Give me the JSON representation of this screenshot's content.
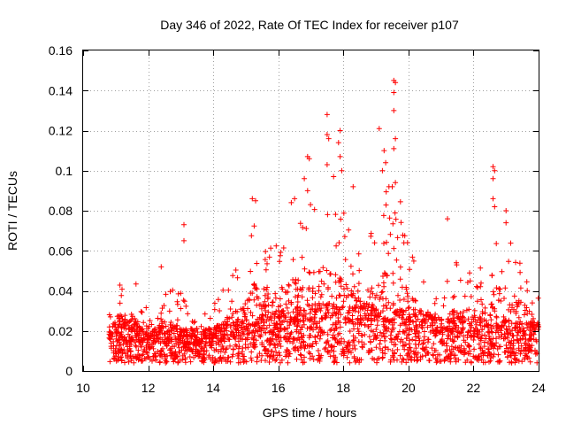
{
  "chart_data": {
    "type": "scatter",
    "title": "Day 346 of 2022, Rate Of TEC Index for receiver p107",
    "xlabel": "GPS time / hours",
    "ylabel": "ROTI / TECUs",
    "xlim": [
      10,
      24
    ],
    "ylim": [
      0,
      0.16
    ],
    "xticks": [
      10,
      12,
      14,
      16,
      18,
      20,
      22,
      24
    ],
    "yticks": [
      0,
      0.02,
      0.04,
      0.06,
      0.08,
      0.1,
      0.12,
      0.14,
      0.16
    ],
    "grid": true,
    "marker": "+",
    "color": "#ff0000",
    "series": [
      {
        "name": "ROTI",
        "x_range": [
          10.8,
          24.0
        ],
        "baseline_envelope": [
          [
            10.8,
            0.016
          ],
          [
            12.0,
            0.014
          ],
          [
            13.0,
            0.013
          ],
          [
            14.0,
            0.014
          ],
          [
            15.0,
            0.016
          ],
          [
            16.0,
            0.019
          ],
          [
            17.0,
            0.021
          ],
          [
            18.0,
            0.021
          ],
          [
            19.0,
            0.021
          ],
          [
            20.0,
            0.019
          ],
          [
            21.0,
            0.017
          ],
          [
            22.0,
            0.016
          ],
          [
            23.0,
            0.016
          ],
          [
            24.0,
            0.015
          ]
        ],
        "activity_envelope": [
          [
            10.8,
            0.032
          ],
          [
            11.0,
            0.046
          ],
          [
            11.5,
            0.048
          ],
          [
            12.0,
            0.03
          ],
          [
            12.5,
            0.042
          ],
          [
            13.0,
            0.04
          ],
          [
            13.5,
            0.025
          ],
          [
            14.0,
            0.035
          ],
          [
            14.5,
            0.045
          ],
          [
            15.0,
            0.06
          ],
          [
            15.3,
            0.08
          ],
          [
            15.7,
            0.065
          ],
          [
            16.0,
            0.07
          ],
          [
            16.5,
            0.075
          ],
          [
            17.0,
            0.085
          ],
          [
            17.5,
            0.09
          ],
          [
            18.0,
            0.08
          ],
          [
            18.5,
            0.06
          ],
          [
            19.0,
            0.075
          ],
          [
            19.3,
            0.09
          ],
          [
            19.7,
            0.095
          ],
          [
            20.0,
            0.065
          ],
          [
            20.5,
            0.05
          ],
          [
            21.0,
            0.045
          ],
          [
            21.5,
            0.055
          ],
          [
            22.0,
            0.05
          ],
          [
            22.5,
            0.06
          ],
          [
            22.8,
            0.075
          ],
          [
            23.2,
            0.065
          ],
          [
            23.6,
            0.055
          ],
          [
            24.0,
            0.04
          ]
        ],
        "outliers": [
          {
            "x": 12.4,
            "y": 0.052
          },
          {
            "x": 13.1,
            "y": 0.073
          },
          {
            "x": 13.1,
            "y": 0.065
          },
          {
            "x": 15.2,
            "y": 0.086
          },
          {
            "x": 15.3,
            "y": 0.085
          },
          {
            "x": 16.4,
            "y": 0.084
          },
          {
            "x": 16.5,
            "y": 0.086
          },
          {
            "x": 16.9,
            "y": 0.107
          },
          {
            "x": 16.95,
            "y": 0.106
          },
          {
            "x": 16.8,
            "y": 0.096
          },
          {
            "x": 16.9,
            "y": 0.09
          },
          {
            "x": 17.5,
            "y": 0.128
          },
          {
            "x": 17.5,
            "y": 0.118
          },
          {
            "x": 17.55,
            "y": 0.116
          },
          {
            "x": 17.5,
            "y": 0.103
          },
          {
            "x": 17.9,
            "y": 0.12
          },
          {
            "x": 17.85,
            "y": 0.114
          },
          {
            "x": 17.9,
            "y": 0.107
          },
          {
            "x": 17.95,
            "y": 0.1
          },
          {
            "x": 17.7,
            "y": 0.097
          },
          {
            "x": 18.3,
            "y": 0.092
          },
          {
            "x": 19.1,
            "y": 0.121
          },
          {
            "x": 19.25,
            "y": 0.11
          },
          {
            "x": 19.2,
            "y": 0.1
          },
          {
            "x": 19.3,
            "y": 0.104
          },
          {
            "x": 19.4,
            "y": 0.092
          },
          {
            "x": 19.5,
            "y": 0.092
          },
          {
            "x": 19.55,
            "y": 0.145
          },
          {
            "x": 19.6,
            "y": 0.144
          },
          {
            "x": 19.55,
            "y": 0.139
          },
          {
            "x": 19.55,
            "y": 0.13
          },
          {
            "x": 19.6,
            "y": 0.116
          },
          {
            "x": 19.55,
            "y": 0.111
          },
          {
            "x": 19.6,
            "y": 0.094
          },
          {
            "x": 21.2,
            "y": 0.076
          },
          {
            "x": 22.6,
            "y": 0.102
          },
          {
            "x": 22.65,
            "y": 0.1
          },
          {
            "x": 22.6,
            "y": 0.096
          },
          {
            "x": 22.6,
            "y": 0.086
          },
          {
            "x": 22.65,
            "y": 0.082
          },
          {
            "x": 23.0,
            "y": 0.08
          },
          {
            "x": 23.0,
            "y": 0.074
          }
        ]
      }
    ]
  }
}
